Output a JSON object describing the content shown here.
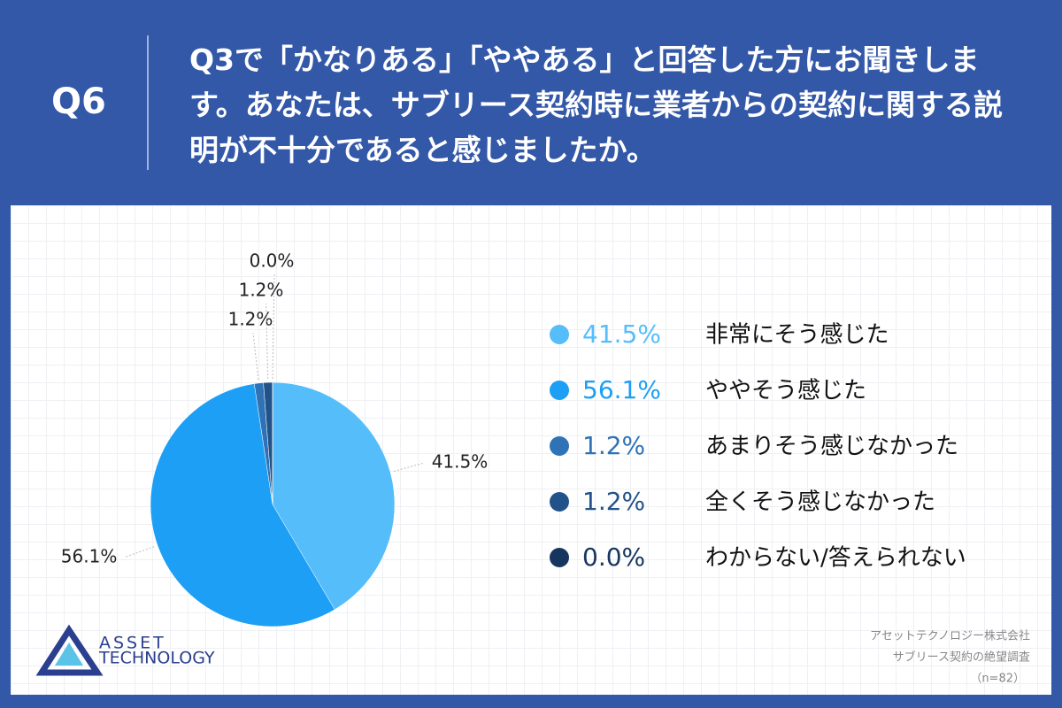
{
  "chart_data": {
    "type": "pie",
    "question_number": "Q6",
    "title": "Q3で「かなりある」「ややある」と回答した方にお聞きします。あなたは、サブリース契約時に業者からの契約に関する説明が不十分であると感じましたか。",
    "categories": [
      "非常にそう感じた",
      "ややそう感じた",
      "あまりそう感じなかった",
      "全くそう感じなかった",
      "わからない/答えられない"
    ],
    "values": [
      41.5,
      56.1,
      1.2,
      1.2,
      0.0
    ],
    "value_labels": [
      "41.5%",
      "56.1%",
      "1.2%",
      "1.2%",
      "0.0%"
    ],
    "colors": [
      "#56bdfb",
      "#1c9ff4",
      "#2f73b6",
      "#22528a",
      "#17365f"
    ],
    "logo": [
      "ASSET",
      "TECHNOLOGY"
    ],
    "source": [
      "アセットテクノロジー株式会社",
      "サブリース契約の絶望調査",
      "（n=82）"
    ]
  }
}
